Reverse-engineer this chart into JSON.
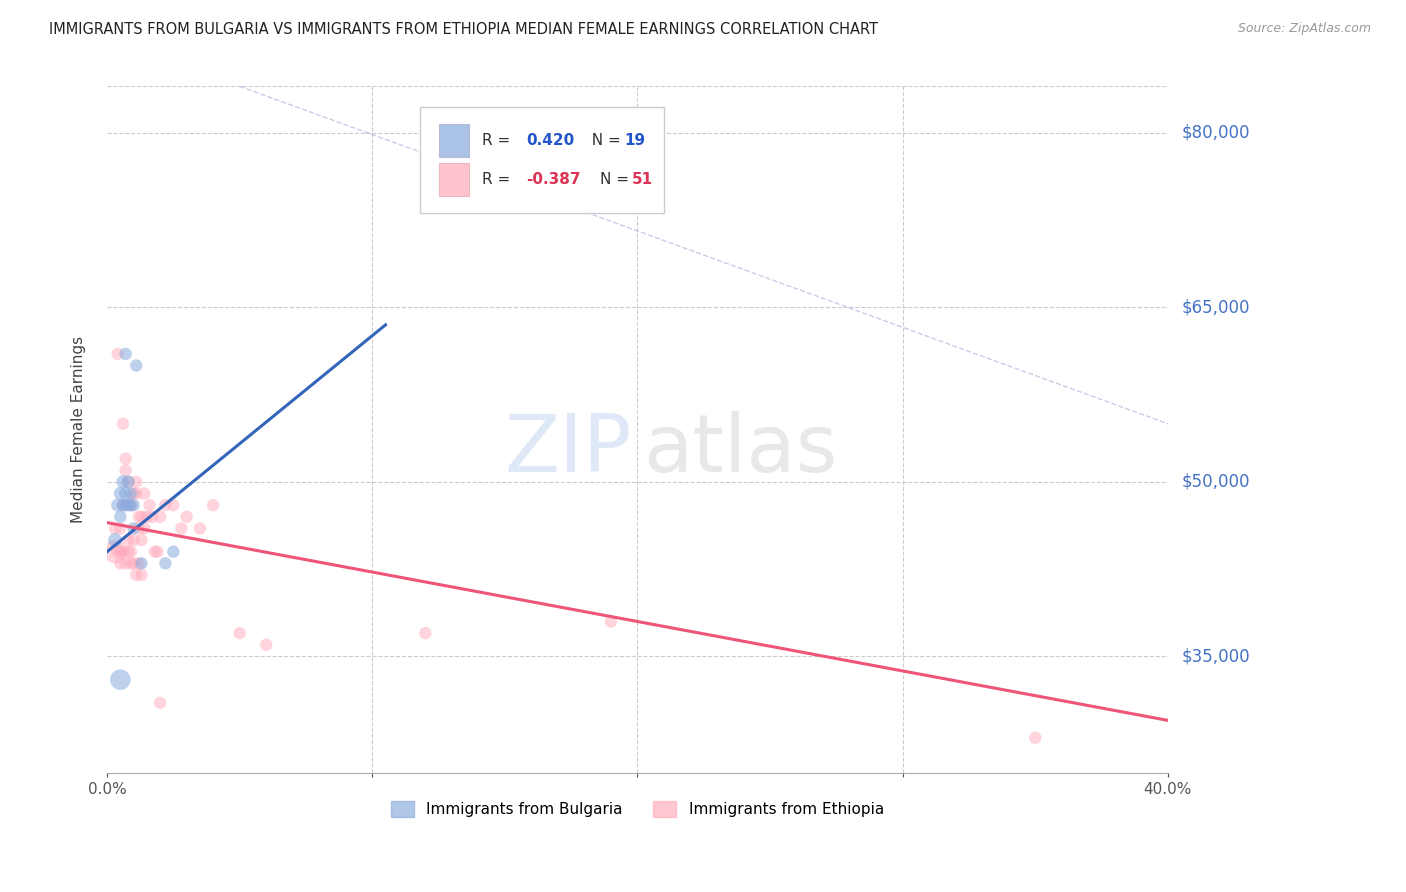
{
  "title": "IMMIGRANTS FROM BULGARIA VS IMMIGRANTS FROM ETHIOPIA MEDIAN FEMALE EARNINGS CORRELATION CHART",
  "source": "Source: ZipAtlas.com",
  "ylabel": "Median Female Earnings",
  "xlim": [
    0.0,
    0.4
  ],
  "ylim": [
    25000,
    84000
  ],
  "yticks": [
    35000,
    50000,
    65000,
    80000
  ],
  "ytick_labels": [
    "$35,000",
    "$50,000",
    "$65,000",
    "$80,000"
  ],
  "xticks": [
    0.0,
    0.1,
    0.2,
    0.3,
    0.4
  ],
  "xtick_labels": [
    "0.0%",
    "",
    "",
    "",
    "40.0%"
  ],
  "bg_color": "#ffffff",
  "grid_color": "#cccccc",
  "blue_color": "#88aadd",
  "pink_color": "#ffaabb",
  "blue_trend_x": [
    0.0,
    0.105
  ],
  "blue_trend_y": [
    44000,
    63500
  ],
  "pink_trend_x": [
    0.0,
    0.4
  ],
  "pink_trend_y": [
    46500,
    29500
  ],
  "ref_line_x": [
    0.05,
    0.4
  ],
  "ref_line_y": [
    84000,
    55000
  ],
  "blue_scatter_x": [
    0.003,
    0.004,
    0.005,
    0.005,
    0.006,
    0.006,
    0.007,
    0.007,
    0.008,
    0.008,
    0.009,
    0.009,
    0.01,
    0.01,
    0.011,
    0.013,
    0.005,
    0.007,
    0.022,
    0.025
  ],
  "blue_scatter_y": [
    45000,
    48000,
    49000,
    47000,
    50000,
    48000,
    49000,
    48000,
    50000,
    48000,
    49000,
    48000,
    46000,
    48000,
    60000,
    43000,
    33000,
    61000,
    43000,
    44000
  ],
  "blue_scatter_sizes": [
    100,
    90,
    90,
    80,
    90,
    80,
    90,
    80,
    90,
    80,
    80,
    80,
    80,
    80,
    80,
    80,
    220,
    80,
    80,
    80
  ],
  "pink_scatter_x": [
    0.003,
    0.004,
    0.005,
    0.005,
    0.006,
    0.006,
    0.007,
    0.007,
    0.008,
    0.008,
    0.009,
    0.009,
    0.01,
    0.01,
    0.011,
    0.011,
    0.012,
    0.012,
    0.013,
    0.013,
    0.014,
    0.014,
    0.015,
    0.016,
    0.017,
    0.018,
    0.019,
    0.02,
    0.022,
    0.025,
    0.028,
    0.03,
    0.035,
    0.04,
    0.05,
    0.06,
    0.12,
    0.19,
    0.35,
    0.003,
    0.004,
    0.005,
    0.006,
    0.007,
    0.008,
    0.009,
    0.01,
    0.011,
    0.012,
    0.013,
    0.02
  ],
  "pink_scatter_y": [
    44000,
    61000,
    46000,
    44000,
    55000,
    48000,
    52000,
    51000,
    50000,
    45000,
    48000,
    44000,
    49000,
    45000,
    49000,
    50000,
    47000,
    46000,
    47000,
    45000,
    49000,
    46000,
    47000,
    48000,
    47000,
    44000,
    44000,
    47000,
    48000,
    48000,
    46000,
    47000,
    46000,
    48000,
    37000,
    36000,
    37000,
    38000,
    28000,
    46000,
    44000,
    43000,
    44000,
    43000,
    44000,
    43000,
    43000,
    42000,
    43000,
    42000,
    31000
  ],
  "pink_scatter_sizes": [
    280,
    80,
    80,
    80,
    80,
    80,
    80,
    80,
    80,
    80,
    80,
    80,
    80,
    80,
    80,
    80,
    80,
    80,
    80,
    80,
    80,
    80,
    80,
    80,
    80,
    80,
    80,
    80,
    80,
    80,
    80,
    80,
    80,
    80,
    80,
    80,
    80,
    80,
    80,
    80,
    80,
    80,
    80,
    80,
    80,
    80,
    80,
    80,
    80,
    80,
    80
  ]
}
